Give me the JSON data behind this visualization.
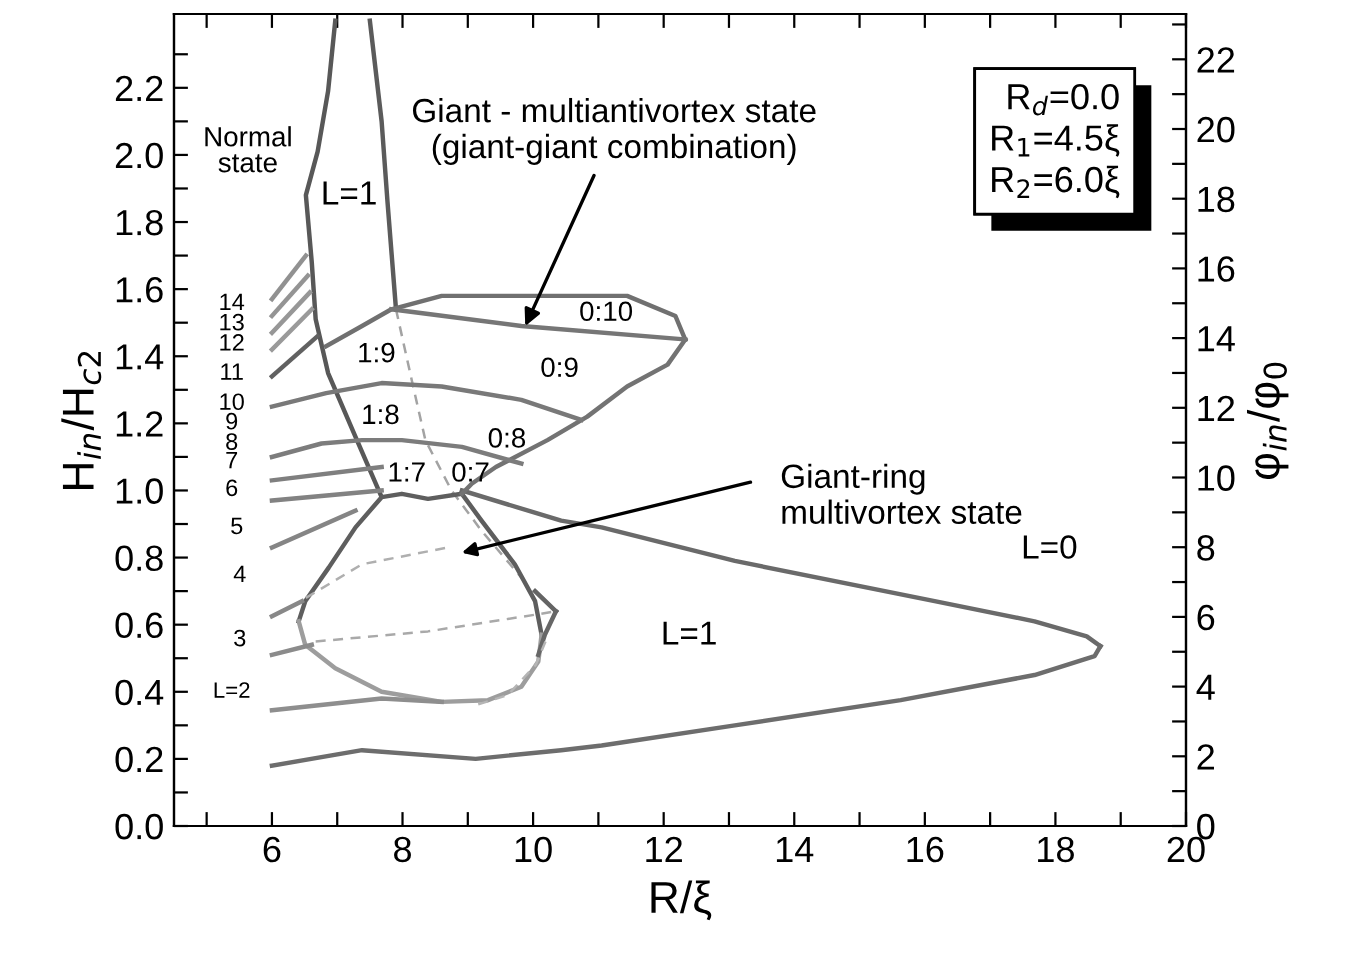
{
  "chart_data": {
    "type": "line",
    "xlabel": "R/ξ",
    "ylabel": "H$_{in}$/H$_{c2}$",
    "y2label": "φ$_{in}$/φ$_{0}$",
    "xlim": [
      4.5,
      20
    ],
    "ylim": [
      0,
      2.42
    ],
    "y2lim": [
      0,
      23.3
    ],
    "xticks": [
      {
        "value": 5,
        "label": null
      },
      6,
      {
        "value": 7,
        "label": null
      },
      8,
      {
        "value": 9,
        "label": null
      },
      10,
      {
        "value": 11,
        "label": null
      },
      12,
      {
        "value": 13,
        "label": null
      },
      14,
      {
        "value": 15,
        "label": null
      },
      16,
      {
        "value": 17,
        "label": null
      },
      18,
      {
        "value": 19,
        "label": null
      },
      20
    ],
    "yticks": [
      {
        "value": 0,
        "label": "0.0"
      },
      {
        "value": 0.1,
        "label": null
      },
      {
        "value": 0.2,
        "label": "0.2"
      },
      {
        "value": 0.3,
        "label": null
      },
      {
        "value": 0.4,
        "label": "0.4"
      },
      {
        "value": 0.5,
        "label": null
      },
      {
        "value": 0.6,
        "label": "0.6"
      },
      {
        "value": 0.7,
        "label": null
      },
      {
        "value": 0.8,
        "label": "0.8"
      },
      {
        "value": 0.9,
        "label": null
      },
      {
        "value": 1.0,
        "label": "1.0"
      },
      {
        "value": 1.1,
        "label": null
      },
      {
        "value": 1.2,
        "label": "1.2"
      },
      {
        "value": 1.3,
        "label": null
      },
      {
        "value": 1.4,
        "label": "1.4"
      },
      {
        "value": 1.5,
        "label": null
      },
      {
        "value": 1.6,
        "label": "1.6"
      },
      {
        "value": 1.7,
        "label": null
      },
      {
        "value": 1.8,
        "label": "1.8"
      },
      {
        "value": 1.9,
        "label": null
      },
      {
        "value": 2.0,
        "label": "2.0"
      },
      {
        "value": 2.1,
        "label": null
      },
      {
        "value": 2.2,
        "label": "2.2"
      },
      {
        "value": 2.3,
        "label": null
      }
    ],
    "y2ticks": [
      0,
      {
        "value": 1,
        "label": null
      },
      2,
      {
        "value": 3,
        "label": null
      },
      4,
      {
        "value": 5,
        "label": null
      },
      6,
      {
        "value": 7,
        "label": null
      },
      8,
      {
        "value": 9,
        "label": null
      },
      10,
      {
        "value": 11,
        "label": null
      },
      12,
      {
        "value": 13,
        "label": null
      },
      14,
      {
        "value": 15,
        "label": null
      },
      16,
      {
        "value": 17,
        "label": null
      },
      18,
      {
        "value": 19,
        "label": null
      },
      20,
      {
        "value": 21,
        "label": null
      },
      22,
      {
        "value": 23,
        "label": null
      }
    ],
    "grid": false,
    "marker": "none",
    "series": [
      {
        "color": "#585858",
        "line_style": "solid",
        "x": [
          6.97,
          6.86,
          6.7,
          6.52,
          6.61,
          6.67,
          6.86,
          7.28,
          7.68
        ],
        "values": [
          2.4,
          2.19,
          2.01,
          1.88,
          1.68,
          1.51,
          1.35,
          1.16,
          0.98
        ]
      },
      {
        "color": "#5b5b5b",
        "line_style": "solid",
        "x": [
          7.5,
          7.68,
          7.77,
          7.9
        ],
        "values": [
          2.4,
          2.1,
          1.86,
          1.54
        ]
      },
      {
        "color": "#a3a3a3",
        "line_style": "dashed",
        "x": [
          7.9,
          8.14,
          8.35,
          8.75,
          9.21,
          9.91
        ],
        "values": [
          1.54,
          1.33,
          1.15,
          1.0,
          0.88,
          0.72
        ]
      },
      {
        "color": "#5e5e5e",
        "line_style": "solid",
        "x": [
          6.41,
          6.51,
          6.87,
          7.28,
          7.68,
          7.99,
          8.39,
          8.91,
          9.21,
          9.72,
          10.03,
          10.13
        ],
        "values": [
          0.61,
          0.67,
          0.77,
          0.89,
          0.98,
          0.99,
          0.975,
          0.99,
          0.91,
          0.78,
          0.67,
          0.57
        ]
      },
      {
        "color": "#9d9d9d",
        "line_style": "solid",
        "x": [
          6.41,
          6.51,
          6.97,
          7.68,
          8.6,
          9.31,
          9.82,
          10.08,
          10.13
        ],
        "values": [
          0.61,
          0.54,
          0.47,
          0.4,
          0.37,
          0.375,
          0.415,
          0.49,
          0.57
        ]
      },
      {
        "color": "#646464",
        "line_style": "solid",
        "x": [
          10.03,
          10.35
        ],
        "values": [
          0.7,
          0.64
        ]
      },
      {
        "color": "#676767",
        "line_style": "solid",
        "x": [
          10.08,
          10.18,
          10.35
        ],
        "values": [
          0.51,
          0.57,
          0.64
        ]
      },
      {
        "color": "#6a6a6a",
        "line_style": "solid",
        "x": [
          8.91,
          10.43,
          11.05,
          13.09,
          16.15,
          17.68,
          18.48,
          18.69
        ],
        "values": [
          1.0,
          0.91,
          0.89,
          0.79,
          0.67,
          0.61,
          0.565,
          0.536
        ]
      },
      {
        "color": "#6d6d6d",
        "line_style": "solid",
        "x": [
          6.0,
          7.38,
          9.12,
          10.43,
          11.05,
          13.09,
          15.63,
          17.68,
          18.6,
          18.69
        ],
        "values": [
          0.18,
          0.226,
          0.2,
          0.226,
          0.24,
          0.3,
          0.375,
          0.45,
          0.506,
          0.536
        ]
      },
      {
        "color": "#707070",
        "line_style": "solid",
        "x": [
          6.83,
          7.38,
          7.83,
          8.6,
          10.43,
          11.44,
          12.18,
          12.33
        ],
        "values": [
          1.43,
          1.49,
          1.54,
          1.58,
          1.58,
          1.58,
          1.52,
          1.45
        ]
      },
      {
        "color": "#737373",
        "line_style": "solid",
        "x": [
          8.91,
          9.06,
          9.43,
          10.22,
          10.83,
          11.44,
          12.06,
          12.33
        ],
        "values": [
          0.99,
          1.02,
          1.07,
          1.15,
          1.22,
          1.31,
          1.375,
          1.45
        ]
      },
      {
        "color": "#767676",
        "line_style": "solid",
        "x": [
          7.83,
          9.82,
          12.33
        ],
        "values": [
          1.54,
          1.49,
          1.45
        ]
      },
      {
        "color": "#797979",
        "line_style": "solid",
        "x": [
          6.0,
          6.83,
          7.68,
          8.6,
          9.82,
          10.74
        ],
        "values": [
          1.25,
          1.29,
          1.32,
          1.31,
          1.27,
          1.21
        ]
      },
      {
        "color": "#7c7c7c",
        "line_style": "solid",
        "x": [
          6.0,
          6.76,
          7.38,
          7.99,
          8.91,
          9.82
        ],
        "values": [
          1.1,
          1.14,
          1.15,
          1.15,
          1.13,
          1.08
        ]
      },
      {
        "color": "#7f7f7f",
        "line_style": "solid",
        "x": [
          6.0,
          7.68
        ],
        "values": [
          1.03,
          1.07
        ]
      },
      {
        "color": "#828282",
        "line_style": "solid",
        "x": [
          6.0,
          7.68
        ],
        "values": [
          0.97,
          1.0
        ]
      },
      {
        "color": "#858585",
        "line_style": "solid",
        "x": [
          6.0,
          7.28
        ],
        "values": [
          0.83,
          0.94
        ]
      },
      {
        "color": "#888888",
        "line_style": "solid",
        "x": [
          6.0,
          6.46
        ],
        "values": [
          0.625,
          0.67
        ]
      },
      {
        "color": "#8b8b8b",
        "line_style": "solid",
        "x": [
          6.0,
          6.61
        ],
        "values": [
          0.51,
          0.54
        ]
      },
      {
        "color": "#8e8e8e",
        "line_style": "solid",
        "x": [
          6.0,
          7.68,
          8.6
        ],
        "values": [
          0.345,
          0.38,
          0.37
        ]
      },
      {
        "color": "#919191",
        "line_style": "solid",
        "x": [
          6.0,
          6.52
        ],
        "values": [
          1.57,
          1.7
        ]
      },
      {
        "color": "#949494",
        "line_style": "solid",
        "x": [
          6.0,
          6.55
        ],
        "values": [
          1.52,
          1.64
        ]
      },
      {
        "color": "#979797",
        "line_style": "solid",
        "x": [
          6.0,
          6.58
        ],
        "values": [
          1.47,
          1.59
        ]
      },
      {
        "color": "#9a9a9a",
        "line_style": "solid",
        "x": [
          6.0,
          6.61
        ],
        "values": [
          1.42,
          1.54
        ]
      },
      {
        "color": "#616161",
        "line_style": "solid",
        "x": [
          6.0,
          6.7
        ],
        "values": [
          1.34,
          1.46
        ]
      },
      {
        "color": "#a9a9a9",
        "line_style": "dashed",
        "x": [
          6.67,
          8.39,
          10.04,
          10.34
        ],
        "values": [
          0.55,
          0.58,
          0.63,
          0.64
        ]
      },
      {
        "color": "#afafaf",
        "line_style": "dashed",
        "x": [
          6.52,
          7.38,
          8.69
        ],
        "values": [
          0.68,
          0.78,
          0.83
        ]
      },
      {
        "color": "#b5b5b5",
        "line_style": "dashed",
        "x": [
          10.19,
          10.04,
          9.61,
          9.12
        ],
        "values": [
          0.55,
          0.48,
          0.39,
          0.36
        ]
      }
    ],
    "annotations": [
      "Normal\nstate",
      "14",
      "13",
      "12",
      "11",
      "10",
      "9",
      "8",
      "7",
      "6",
      "5",
      "4",
      "3",
      "L=2",
      "L=1",
      "1:9",
      "0:10",
      "0:9",
      "1:8",
      "0:8",
      "1:7",
      "0:7",
      "L=1",
      "L=0",
      {
        "text": "Giant - multiantivortex state\n(giant-giant combination)",
        "x": 9.88,
        "y": 1.49
      },
      "Giant-ring\nmultivortex state",
      "R$_{d}$=0.0\nR$_{1}$=4.5ξ\nR$_{2}$=6.0ξ"
    ]
  }
}
